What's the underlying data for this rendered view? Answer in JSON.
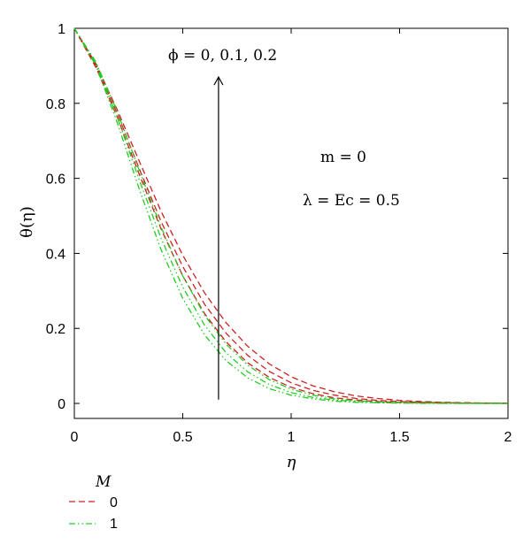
{
  "chart_data": {
    "type": "line",
    "title": "",
    "xlabel": "η",
    "ylabel": "θ(η)",
    "xlim": [
      0,
      2
    ],
    "ylim": [
      -0.04,
      1
    ],
    "x_ticks": [
      "0",
      "0.5",
      "1",
      "1.5",
      "2"
    ],
    "y_ticks": [
      "0",
      "0.2",
      "0.4",
      "0.6",
      "0.8",
      "1"
    ],
    "grid": false,
    "legend": {
      "title": "M",
      "placement": "bottom-left, below plot",
      "entries": [
        {
          "label": "0",
          "color": "#cc2222",
          "style": "dashed"
        },
        {
          "label": "1",
          "color": "#22cc22",
          "style": "dash-dot-dot"
        }
      ]
    },
    "annotations": {
      "phi": "ϕ = 0, 0.1, 0.2",
      "m": "m = 0",
      "lambda": "λ = Ec = 0.5"
    },
    "x": [
      0,
      0.1,
      0.2,
      0.3,
      0.4,
      0.5,
      0.6,
      0.7,
      0.8,
      0.9,
      1.0,
      1.1,
      1.2,
      1.3,
      1.4,
      1.5,
      1.6,
      1.7,
      1.8,
      1.9,
      2.0
    ],
    "series": [
      {
        "legend_label": "0",
        "color": "#cc2222",
        "style": "dashed",
        "values": [
          1.0,
          0.905,
          0.78,
          0.645,
          0.512,
          0.395,
          0.295,
          0.215,
          0.152,
          0.105,
          0.071,
          0.047,
          0.031,
          0.02,
          0.013,
          0.008,
          0.005,
          0.003,
          0.002,
          0.001,
          0.001
        ]
      },
      {
        "legend_label": "0",
        "color": "#cc2222",
        "style": "dashed",
        "values": [
          1.0,
          0.9,
          0.77,
          0.625,
          0.485,
          0.365,
          0.265,
          0.187,
          0.128,
          0.085,
          0.055,
          0.035,
          0.022,
          0.013,
          0.008,
          0.005,
          0.003,
          0.002,
          0.001,
          0.001,
          0.0
        ]
      },
      {
        "legend_label": "0",
        "color": "#cc2222",
        "style": "dashed",
        "values": [
          1.0,
          0.895,
          0.76,
          0.61,
          0.465,
          0.34,
          0.24,
          0.164,
          0.108,
          0.069,
          0.043,
          0.026,
          0.015,
          0.009,
          0.005,
          0.003,
          0.002,
          0.001,
          0.001,
          0.0,
          0.0
        ]
      },
      {
        "legend_label": "1",
        "color": "#22cc22",
        "style": "dash-dot-dot",
        "values": [
          1.0,
          0.91,
          0.775,
          0.62,
          0.47,
          0.34,
          0.236,
          0.158,
          0.102,
          0.063,
          0.038,
          0.022,
          0.012,
          0.007,
          0.004,
          0.002,
          0.001,
          0.001,
          0.0,
          0.0,
          0.0
        ]
      },
      {
        "legend_label": "1",
        "color": "#22cc22",
        "style": "dash-dot-dot",
        "values": [
          1.0,
          0.905,
          0.76,
          0.595,
          0.44,
          0.31,
          0.209,
          0.135,
          0.084,
          0.05,
          0.029,
          0.016,
          0.009,
          0.005,
          0.002,
          0.001,
          0.001,
          0.0,
          0.0,
          0.0,
          0.0
        ]
      },
      {
        "legend_label": "1",
        "color": "#22cc22",
        "style": "dash-dot-dot",
        "values": [
          1.0,
          0.9,
          0.745,
          0.57,
          0.41,
          0.28,
          0.183,
          0.114,
          0.068,
          0.039,
          0.022,
          0.012,
          0.006,
          0.003,
          0.002,
          0.001,
          0.0,
          0.0,
          0.0,
          0.0,
          0.0
        ]
      }
    ],
    "arrow": {
      "x": 0.665,
      "y_from": 0.01,
      "y_to": 0.87
    }
  }
}
